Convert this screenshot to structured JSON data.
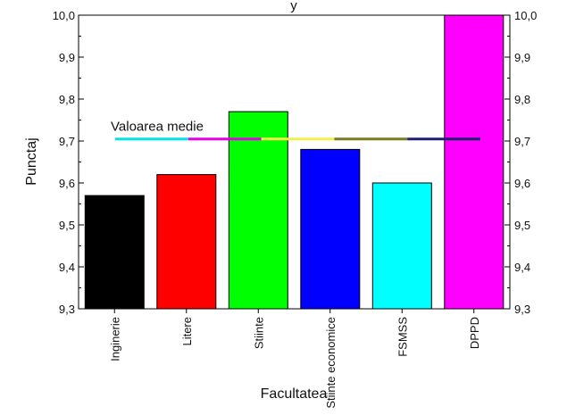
{
  "chart_data": {
    "type": "bar",
    "title_fragment": "y",
    "xlabel": "Facultatea",
    "ylabel": "Punctaj",
    "categories": [
      "Inginerie",
      "Litere",
      "Stiinte",
      "Stiinte economice",
      "FSMSS",
      "DPPD"
    ],
    "values": [
      9.57,
      9.62,
      9.77,
      9.68,
      9.6,
      10.0
    ],
    "ylim": [
      9.3,
      10.0
    ],
    "yticks": [
      "9,3",
      "9,4",
      "9,5",
      "9,6",
      "9,7",
      "9,8",
      "9,9",
      "10,0"
    ],
    "grid": false,
    "bar_colors": [
      "#000000",
      "#ff0000",
      "#00ff00",
      "#0000ff",
      "#00ffff",
      "#ff00ff"
    ],
    "mean_line": {
      "label": "Valoarea medie",
      "value": 9.705,
      "segment_colors": [
        "#00e5e5",
        "#e600e6",
        "#f2f24a",
        "#7a7a20",
        "#202070"
      ]
    }
  }
}
